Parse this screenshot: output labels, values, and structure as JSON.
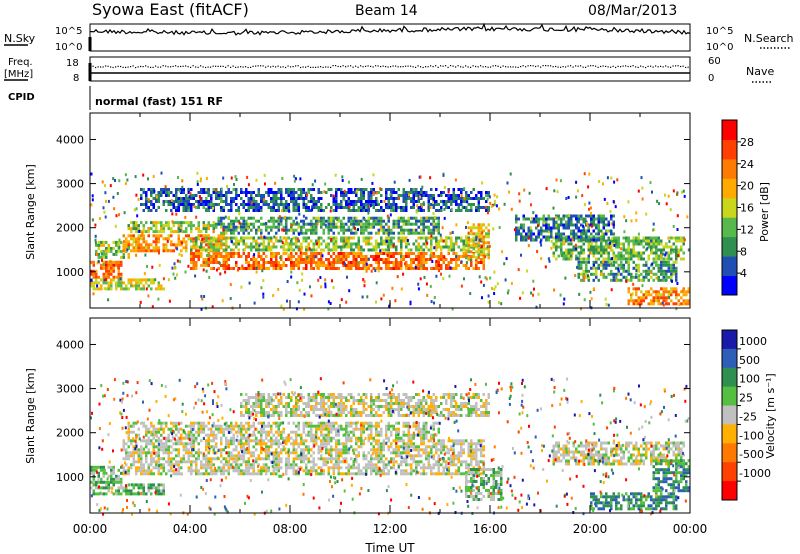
{
  "header": {
    "station": "Syowa East (fitACF)",
    "beam": "Beam 14",
    "date": "08/Mar/2013"
  },
  "top_panels": {
    "nsky_label": "N.Sky",
    "nsearch_label": "N.Search",
    "noise_ticks_left": [
      "10^5",
      "10^0"
    ],
    "noise_ticks_right": [
      "10^5",
      "10^0"
    ],
    "freq_label": "Freq.",
    "freq_unit": "[MHz]",
    "freq_ticks": [
      "18",
      "8"
    ],
    "nave_label": "Nave",
    "nave_ticks": [
      "60",
      "0"
    ],
    "cpid_label": "CPID",
    "cpid_text": "normal (fast) 151 RF"
  },
  "colors": {
    "power_scale": [
      "#0000ff",
      "#1f4fb4",
      "#2f8f4f",
      "#57b84b",
      "#c8d61c",
      "#ffaa00",
      "#ff7a00",
      "#ff4000",
      "#ff0000"
    ],
    "velocity_scale": [
      "#1a1aaa",
      "#2e5fb8",
      "#2f8f4f",
      "#55c040",
      "#c0c0c0",
      "#ffb000",
      "#ff7800",
      "#ff4000",
      "#ff0000"
    ],
    "ground_scatter": "#c0c0c0"
  },
  "chart_data": [
    {
      "type": "heatmap",
      "panel": "power",
      "ylabel": "Slant Range [km]",
      "xlim": [
        0,
        24
      ],
      "ylim": [
        180,
        4600
      ],
      "y_ticks": [
        1000,
        2000,
        3000,
        4000
      ],
      "colorbar_label": "Power [dB]",
      "colorbar_ticks": [
        4,
        8,
        12,
        16,
        20,
        24,
        28
      ],
      "colorbar_range": [
        0,
        32
      ],
      "bands": [
        {
          "t0": 0.0,
          "t1": 1.3,
          "r0": 850,
          "r1": 1250,
          "value": 24
        },
        {
          "t0": 0.0,
          "t1": 3.0,
          "r0": 600,
          "r1": 850,
          "value": 16
        },
        {
          "t0": 0.2,
          "t1": 1.6,
          "r0": 1300,
          "r1": 1700,
          "value": 14
        },
        {
          "t0": 1.3,
          "t1": 5.5,
          "r0": 1450,
          "r1": 1850,
          "value": 22
        },
        {
          "t0": 1.5,
          "t1": 5.0,
          "r0": 1900,
          "r1": 2150,
          "value": 14
        },
        {
          "t0": 4.0,
          "t1": 15.8,
          "r0": 1100,
          "r1": 1450,
          "value": 24
        },
        {
          "t0": 4.0,
          "t1": 15.8,
          "r0": 1480,
          "r1": 1800,
          "value": 14
        },
        {
          "t0": 5.0,
          "t1": 14.0,
          "r0": 1900,
          "r1": 2250,
          "value": 10
        },
        {
          "t0": 2.0,
          "t1": 16.0,
          "r0": 2400,
          "r1": 2900,
          "value": 6
        },
        {
          "t0": 15.0,
          "t1": 16.0,
          "r0": 1300,
          "r1": 2100,
          "value": 18
        },
        {
          "t0": 18.5,
          "t1": 23.8,
          "r0": 1300,
          "r1": 1800,
          "value": 12
        },
        {
          "t0": 17.0,
          "t1": 21.0,
          "r0": 1700,
          "r1": 2300,
          "value": 7
        },
        {
          "t0": 19.5,
          "t1": 23.5,
          "r0": 800,
          "r1": 1250,
          "value": 10
        },
        {
          "t0": 21.5,
          "t1": 24.0,
          "r0": 300,
          "r1": 650,
          "value": 22
        }
      ]
    },
    {
      "type": "heatmap",
      "panel": "velocity",
      "ylabel": "Slant Range [km]",
      "xlabel": "Time UT",
      "x_ticks": [
        "00:00",
        "04:00",
        "08:00",
        "12:00",
        "16:00",
        "20:00",
        "00:00"
      ],
      "xlim": [
        0,
        24
      ],
      "ylim": [
        180,
        4600
      ],
      "y_ticks": [
        1000,
        2000,
        3000,
        4000
      ],
      "colorbar_label": "Velocity [m s⁻¹]",
      "colorbar_ticks": [
        "1000",
        "500",
        "100",
        "25",
        "-25",
        "-100",
        "-500",
        "-1000"
      ],
      "bands": [
        {
          "t0": 0.0,
          "t1": 1.3,
          "r0": 850,
          "r1": 1250,
          "value": 3
        },
        {
          "t0": 0.0,
          "t1": 3.0,
          "r0": 600,
          "r1": 850,
          "value": 3
        },
        {
          "t0": 1.3,
          "t1": 15.8,
          "r0": 1100,
          "r1": 1850,
          "value": 4
        },
        {
          "t0": 1.5,
          "t1": 14.0,
          "r0": 1900,
          "r1": 2250,
          "value": 4
        },
        {
          "t0": 6.0,
          "t1": 16.0,
          "r0": 2400,
          "r1": 2900,
          "value": 4
        },
        {
          "t0": 15.0,
          "t1": 16.5,
          "r0": 500,
          "r1": 1200,
          "value": 3
        },
        {
          "t0": 18.5,
          "t1": 23.8,
          "r0": 1300,
          "r1": 1800,
          "value": 4
        },
        {
          "t0": 20.0,
          "t1": 23.5,
          "r0": 300,
          "r1": 650,
          "value": 2
        },
        {
          "t0": 22.5,
          "t1": 24.0,
          "r0": 700,
          "r1": 1400,
          "value": 2
        }
      ]
    }
  ]
}
